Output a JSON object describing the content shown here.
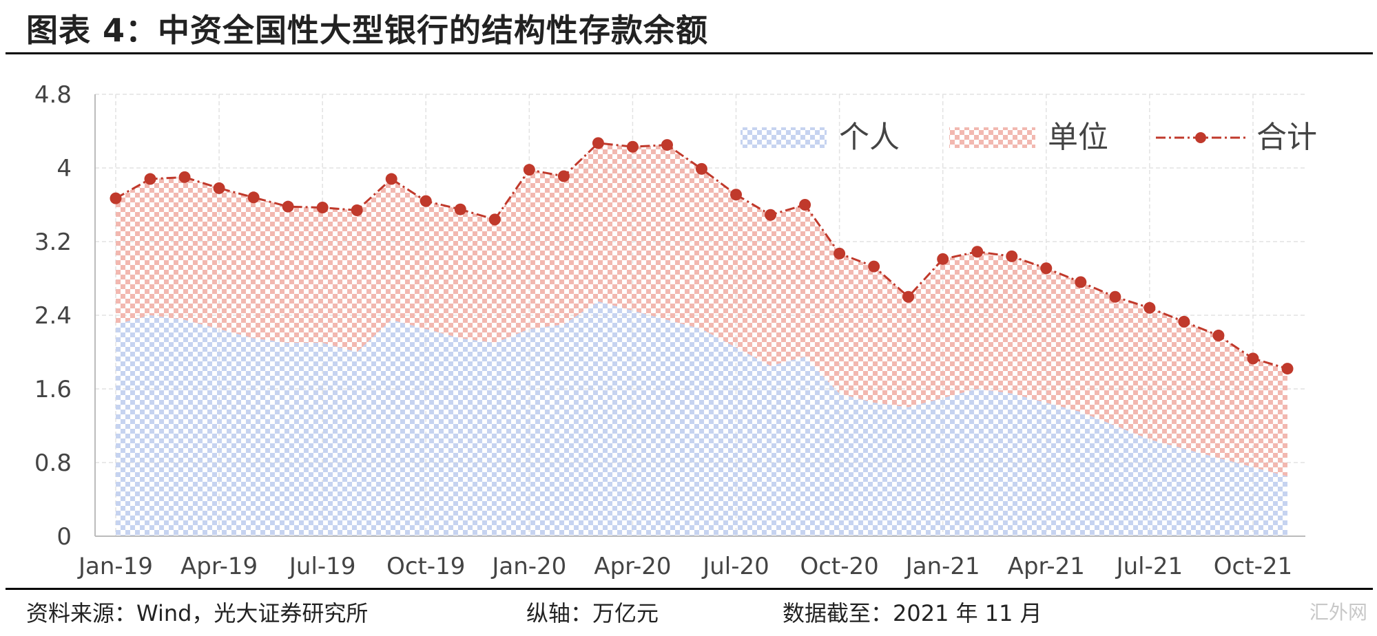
{
  "header": {
    "title": "图表 4：中资全国性大型银行的结构性存款余额"
  },
  "footer": {
    "source": "资料来源：Wind，光大证券研究所",
    "axis_note": "纵轴：万亿元",
    "date_note": "数据截至：2021 年 11 月"
  },
  "watermark": {
    "text": "汇外网"
  },
  "colors": {
    "personal": "#c6d3f0",
    "unit": "#f2b8b0",
    "total": "#c0392b",
    "grid": "#e2e2e2",
    "axis": "#bbbbbb"
  },
  "chart_data": {
    "type": "area",
    "title": "",
    "xlabel": "",
    "ylabel": "",
    "ylim": [
      0,
      4.8
    ],
    "yticks": [
      "0",
      "0.8",
      "1.6",
      "2.4",
      "3.2",
      "4",
      "4.8"
    ],
    "x": [
      "2019-01",
      "2019-02",
      "2019-03",
      "2019-04",
      "2019-05",
      "2019-06",
      "2019-07",
      "2019-08",
      "2019-09",
      "2019-10",
      "2019-11",
      "2019-12",
      "2020-01",
      "2020-02",
      "2020-03",
      "2020-04",
      "2020-05",
      "2020-06",
      "2020-07",
      "2020-08",
      "2020-09",
      "2020-10",
      "2020-11",
      "2020-12",
      "2021-01",
      "2021-02",
      "2021-03",
      "2021-04",
      "2021-05",
      "2021-06",
      "2021-07",
      "2021-08",
      "2021-09",
      "2021-10",
      "2021-11"
    ],
    "xtick_labels": [
      "Jan-19",
      "Apr-19",
      "Jul-19",
      "Oct-19",
      "Jan-20",
      "Apr-20",
      "Jul-20",
      "Oct-20",
      "Jan-21",
      "Apr-21",
      "Jul-21",
      "Oct-21"
    ],
    "xtick_index": [
      0,
      3,
      6,
      9,
      12,
      15,
      18,
      21,
      24,
      27,
      30,
      33
    ],
    "grid": true,
    "legend_position": "top-right",
    "stacked": true,
    "series": [
      {
        "name": "个人",
        "kind": "area",
        "color": "#c6d3f0",
        "values": [
          2.3,
          2.4,
          2.35,
          2.25,
          2.15,
          2.1,
          2.1,
          2.0,
          2.35,
          2.25,
          2.15,
          2.1,
          2.25,
          2.3,
          2.55,
          2.45,
          2.35,
          2.25,
          2.05,
          1.85,
          1.95,
          1.55,
          1.45,
          1.4,
          1.5,
          1.6,
          1.55,
          1.45,
          1.35,
          1.2,
          1.05,
          0.95,
          0.85,
          0.75,
          0.65
        ]
      },
      {
        "name": "单位",
        "kind": "area",
        "color": "#f2b8b0",
        "values": [
          1.37,
          1.48,
          1.55,
          1.53,
          1.53,
          1.48,
          1.47,
          1.54,
          1.53,
          1.39,
          1.4,
          1.34,
          1.73,
          1.61,
          1.72,
          1.78,
          1.9,
          1.74,
          1.66,
          1.64,
          1.65,
          1.52,
          1.48,
          1.2,
          1.51,
          1.49,
          1.49,
          1.46,
          1.41,
          1.4,
          1.43,
          1.38,
          1.33,
          1.18,
          1.17
        ]
      },
      {
        "name": "合计",
        "kind": "line",
        "color": "#c0392b",
        "values": [
          3.67,
          3.88,
          3.9,
          3.78,
          3.68,
          3.58,
          3.57,
          3.54,
          3.88,
          3.64,
          3.55,
          3.44,
          3.98,
          3.91,
          4.27,
          4.23,
          4.25,
          3.99,
          3.71,
          3.49,
          3.6,
          3.07,
          2.93,
          2.6,
          3.01,
          3.09,
          3.04,
          2.91,
          2.76,
          2.6,
          2.48,
          2.33,
          2.18,
          1.93,
          1.82
        ]
      }
    ]
  }
}
